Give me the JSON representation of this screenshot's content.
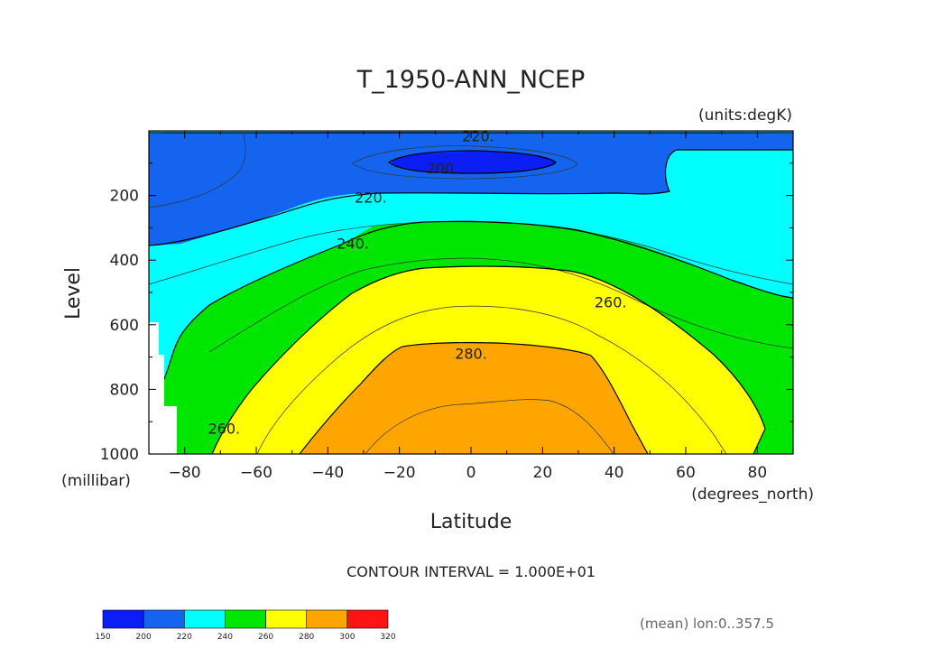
{
  "chart_data": {
    "type": "contour",
    "title": "T_1950-ANN_NCEP",
    "units_label": "(units:degK)",
    "xlabel": "Latitude",
    "x_units_label": "(degrees_north)",
    "ylabel": "Level",
    "y_units_label": "(millibar)",
    "xlim": [
      -90,
      90
    ],
    "ylim": [
      1000,
      0
    ],
    "x_ticks": [
      -80,
      -60,
      -40,
      -20,
      0,
      20,
      40,
      60,
      80
    ],
    "x_tick_labels": [
      "−80",
      "−60",
      "−40",
      "−20",
      "0",
      "20",
      "40",
      "60",
      "80"
    ],
    "y_ticks": [
      200,
      400,
      600,
      800,
      1000
    ],
    "y_tick_labels": [
      "200",
      "400",
      "600",
      "800",
      "1000"
    ],
    "contour_interval_text": "CONTOUR INTERVAL = 1.000E+01",
    "footnote": "(mean) lon:0..357.5",
    "contour_labels": [
      {
        "text": "220.",
        "lat": 2,
        "level": 15
      },
      {
        "text": "200.",
        "lat": -8,
        "level": 115
      },
      {
        "text": "220.",
        "lat": -28,
        "level": 205
      },
      {
        "text": "240.",
        "lat": -33,
        "level": 348
      },
      {
        "text": "260.",
        "lat": 39,
        "level": 530
      },
      {
        "text": "280.",
        "lat": 0,
        "level": 688
      },
      {
        "text": "260.",
        "lat": -69,
        "level": 920
      }
    ],
    "colorbar": {
      "levels": [
        "150",
        "200",
        "220",
        "240",
        "260",
        "280",
        "300",
        "320"
      ],
      "colors": [
        "#0a1ef5",
        "#1464f0",
        "#00ffff",
        "#00e600",
        "#ffff00",
        "#ffa500",
        "#ff1414"
      ]
    },
    "fill_colors": {
      "below_200": "#0a1ef5",
      "200_220": "#1464f0",
      "220_240": "#00ffff",
      "240_260": "#00e600",
      "260_280": "#ffff00",
      "280_300": "#ffa500"
    }
  }
}
